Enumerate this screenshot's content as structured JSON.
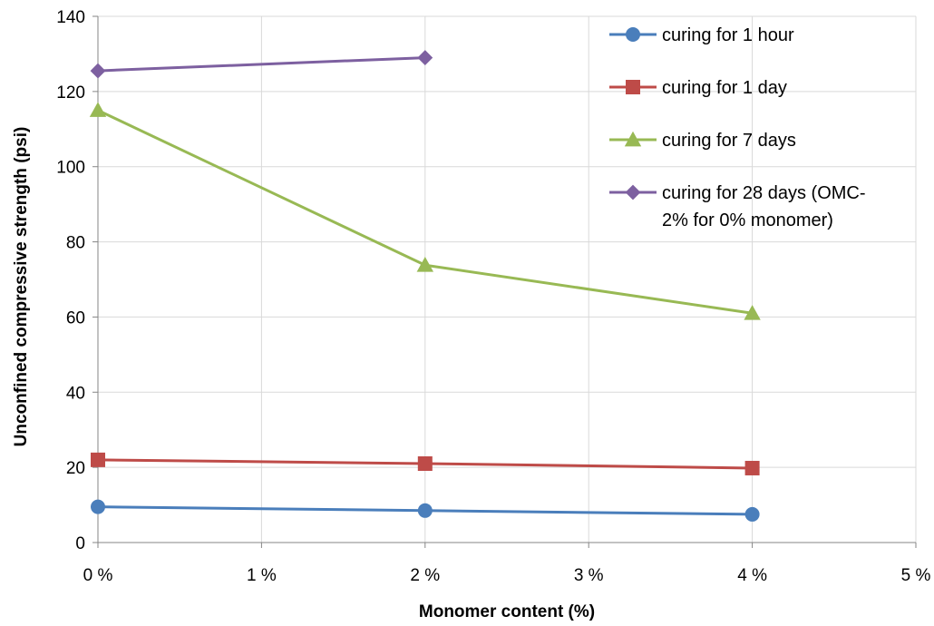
{
  "chart_data": {
    "type": "line",
    "xlabel": "Monomer content (%)",
    "ylabel": "Unconfined compressive strength (psi)",
    "xlim": [
      0,
      5
    ],
    "ylim": [
      0,
      140
    ],
    "x_ticks": [
      0,
      1,
      2,
      3,
      4,
      5
    ],
    "x_tick_labels": [
      "0 %",
      "1 %",
      "2 %",
      "3 %",
      "4 %",
      "5 %"
    ],
    "y_ticks": [
      0,
      20,
      40,
      60,
      80,
      100,
      120,
      140
    ],
    "y_tick_labels": [
      "0",
      "20",
      "40",
      "60",
      "80",
      "100",
      "120",
      "140"
    ],
    "grid": true,
    "legend_position": "top-right",
    "series": [
      {
        "name": "curing for 1 hour",
        "name_lines": [
          "curing for 1 hour"
        ],
        "color": "#4a7ebb",
        "marker": "circle",
        "x": [
          0,
          2,
          4
        ],
        "y": [
          9.5,
          8.5,
          7.5
        ]
      },
      {
        "name": "curing for 1 day",
        "name_lines": [
          "curing for 1 day"
        ],
        "color": "#be4b48",
        "marker": "square",
        "x": [
          0,
          2,
          4
        ],
        "y": [
          22,
          21,
          19.8
        ]
      },
      {
        "name": "curing for 7 days",
        "name_lines": [
          "curing for 7 days"
        ],
        "color": "#98b954",
        "marker": "triangle",
        "x": [
          0,
          2,
          4
        ],
        "y": [
          115,
          73.8,
          61
        ]
      },
      {
        "name": "curing for 28 days (OMC-2% for 0% monomer)",
        "name_lines": [
          "curing for 28 days (OMC-",
          "2% for 0% monomer)"
        ],
        "color": "#7d60a0",
        "marker": "diamond",
        "x": [
          0,
          2
        ],
        "y": [
          125.5,
          129
        ]
      }
    ]
  }
}
